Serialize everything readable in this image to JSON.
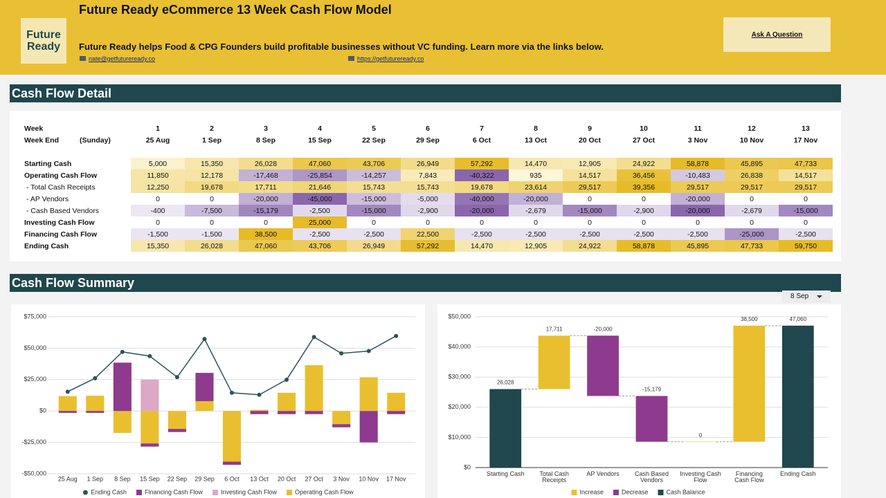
{
  "header": {
    "logo": "Future Ready",
    "title": "Future Ready eCommerce 13 Week Cash Flow Model",
    "subtitle": "Future Ready helps Food & CPG Founders build profitable businesses without VC funding. Learn more via the links below.",
    "email": "nate@getfutureready.co",
    "website": "https://getfutureready.co",
    "button": "Ask A Question"
  },
  "sections": [
    "Cash Flow Detail",
    "Cash Flow Summary"
  ],
  "table": {
    "week_row": {
      "label": "Week",
      "cells": [
        "1",
        "2",
        "3",
        "4",
        "5",
        "6",
        "7",
        "8",
        "9",
        "10",
        "11",
        "12",
        "13"
      ]
    },
    "week_end_row": {
      "label": "Week End",
      "note": "(Sunday)",
      "cells": [
        "25 Aug",
        "1 Sep",
        "8 Sep",
        "15 Sep",
        "22 Sep",
        "29 Sep",
        "6 Oct",
        "13 Oct",
        "20 Oct",
        "27 Oct",
        "3 Nov",
        "10 Nov",
        "17 Nov"
      ]
    },
    "rows": [
      {
        "label": "Starting Cash",
        "bold": true,
        "cells": [
          "5,000",
          "15,350",
          "26,028",
          "47,060",
          "43,706",
          "26,949",
          "57,292",
          "14,470",
          "12,905",
          "24,922",
          "58,878",
          "45,895",
          "47,733"
        ]
      },
      {
        "label": "Operating Cash Flow",
        "bold": true,
        "cells": [
          "11,850",
          "12,178",
          "-17,468",
          "-25,854",
          "-14,257",
          "7,843",
          "-40,322",
          "935",
          "14,517",
          "36,456",
          "-10,483",
          "26,838",
          "14,517"
        ]
      },
      {
        "label": "- Total Cash Receipts",
        "bold": false,
        "cells": [
          "12,250",
          "19,678",
          "17,711",
          "21,646",
          "15,743",
          "15,743",
          "19,678",
          "23,614",
          "29,517",
          "39,356",
          "29,517",
          "29,517",
          "29,517"
        ]
      },
      {
        "label": "- AP Vendors",
        "bold": false,
        "cells": [
          "0",
          "0",
          "-20,000",
          "-45,000",
          "-15,000",
          "-5,000",
          "-40,000",
          "-20,000",
          "0",
          "0",
          "-20,000",
          "0",
          "0"
        ]
      },
      {
        "label": "- Cash Based Vendors",
        "bold": false,
        "cells": [
          "-400",
          "-7,500",
          "-15,179",
          "-2,500",
          "-15,000",
          "-2,900",
          "-20,000",
          "-2,679",
          "-15,000",
          "-2,900",
          "-20,000",
          "-2,679",
          "-15,000"
        ]
      },
      {
        "label": "Investing Cash Flow",
        "bold": true,
        "cells": [
          "0",
          "0",
          "0",
          "25,000",
          "0",
          "0",
          "0",
          "0",
          "0",
          "0",
          "0",
          "0",
          "0"
        ]
      },
      {
        "label": "Financing Cash Flow",
        "bold": true,
        "cells": [
          "-1,500",
          "-1,500",
          "38,500",
          "-2,500",
          "-2,500",
          "22,500",
          "-2,500",
          "-2,500",
          "-2,500",
          "-2,500",
          "-2,500",
          "-25,000",
          "-2,500"
        ]
      },
      {
        "label": "Ending Cash",
        "bold": true,
        "cells": [
          "15,350",
          "26,028",
          "47,060",
          "43,706",
          "26,949",
          "57,292",
          "14,470",
          "12,905",
          "24,922",
          "58,878",
          "45,895",
          "47,733",
          "59,750"
        ]
      }
    ]
  },
  "selector": "8 Sep",
  "chart_data": [
    {
      "type": "bar",
      "stacked": true,
      "categories": [
        "25 Aug",
        "1 Sep",
        "8 Sep",
        "15 Sep",
        "22 Sep",
        "29 Sep",
        "6 Oct",
        "13 Oct",
        "20 Oct",
        "27 Oct",
        "3 Nov",
        "10 Nov",
        "17 Nov"
      ],
      "series": [
        {
          "name": "Ending Cash",
          "type": "line",
          "color": "#2d5258",
          "values": [
            15350,
            26028,
            47060,
            43706,
            26949,
            57292,
            14470,
            12905,
            24922,
            58878,
            45895,
            47733,
            59750
          ]
        },
        {
          "name": "Financing Cash Flow",
          "color": "#8e3a8e",
          "values": [
            -1500,
            -1500,
            38500,
            -2500,
            -2500,
            22500,
            -2500,
            -2500,
            -2500,
            -2500,
            -2500,
            -25000,
            -2500
          ]
        },
        {
          "name": "Investing Cash Flow",
          "color": "#dca8c6",
          "values": [
            0,
            0,
            0,
            25000,
            0,
            0,
            0,
            0,
            0,
            0,
            0,
            0,
            0
          ]
        },
        {
          "name": "Operating Cash Flow",
          "color": "#e9bf2f",
          "values": [
            11850,
            12178,
            -17468,
            -25854,
            -14257,
            7843,
            -40322,
            935,
            14517,
            36456,
            -10483,
            26838,
            14517
          ]
        }
      ],
      "ylim": [
        -50000,
        75000
      ],
      "yticks": [
        {
          "value": -50000,
          "label": "-$50,000"
        },
        {
          "value": -25000,
          "label": "-$25,000"
        },
        {
          "value": 0,
          "label": "$0"
        },
        {
          "value": 25000,
          "label": "$25,000"
        },
        {
          "value": 50000,
          "label": "$50,000"
        },
        {
          "value": 75000,
          "label": "$75,000"
        }
      ],
      "grid": true,
      "legend": "bottom"
    },
    {
      "type": "waterfall",
      "categories": [
        "Starting Cash",
        "Total Cash Receipts",
        "AP Vendors",
        "Cash Based Vendors",
        "Investing Cash Flow",
        "Financing Cash Flow",
        "Ending Cash"
      ],
      "series": [
        {
          "name": "Increase",
          "color": "#e9bf2f",
          "values": [
            null,
            17711,
            null,
            null,
            0,
            38500,
            null
          ],
          "value_labels": [
            null,
            "17,711",
            null,
            null,
            "0",
            "38,500",
            null
          ]
        },
        {
          "name": "Decrease",
          "color": "#8e3a8e",
          "values": [
            null,
            null,
            -20000,
            -15179,
            null,
            null,
            null
          ],
          "value_labels": [
            null,
            null,
            "-20,000",
            "-15,179",
            null,
            null,
            null
          ]
        },
        {
          "name": "Cash Balance",
          "color": "#1f474d",
          "balance": true,
          "values": [
            26028,
            null,
            null,
            null,
            null,
            null,
            47060
          ],
          "value_labels": [
            "26,028",
            null,
            null,
            null,
            null,
            null,
            "47,060"
          ]
        }
      ],
      "ylim": [
        0,
        50000
      ],
      "yticks": [
        {
          "value": 0,
          "label": "$0"
        },
        {
          "value": 10000,
          "label": "$10,000"
        },
        {
          "value": 20000,
          "label": "$20,000"
        },
        {
          "value": 30000,
          "label": "$30,000"
        },
        {
          "value": 40000,
          "label": "$40,000"
        },
        {
          "value": 50000,
          "label": "$50,000"
        }
      ],
      "grid": true,
      "legend": "bottom"
    }
  ]
}
